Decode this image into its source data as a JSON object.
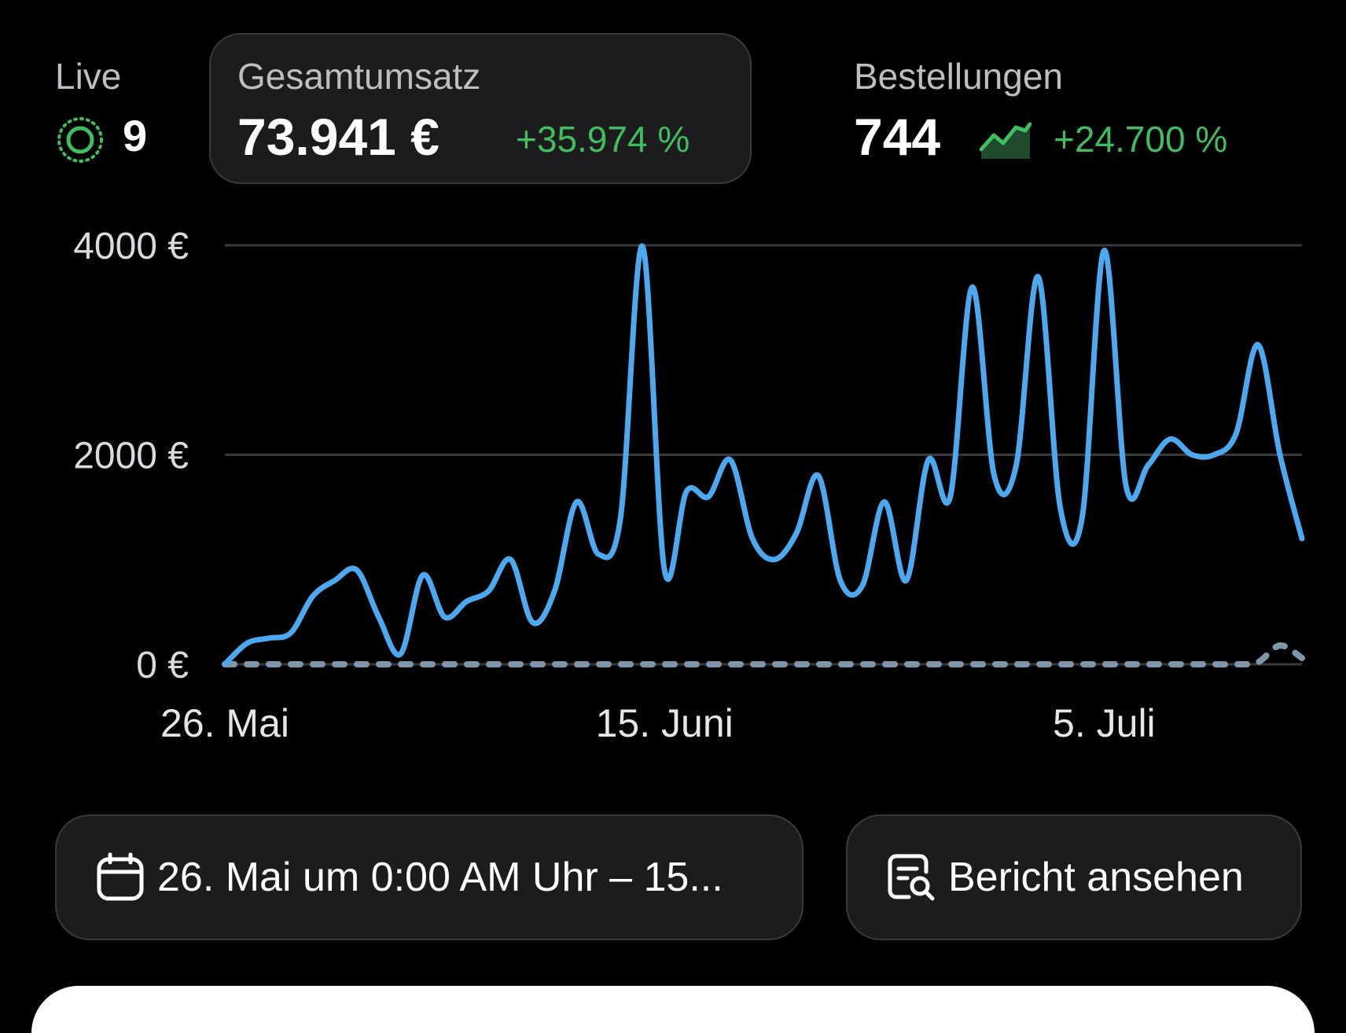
{
  "live": {
    "label": "Live",
    "count": "9",
    "icon": "live-activity-icon"
  },
  "revenue": {
    "label": "Gesamtumsatz",
    "value": "73.941 €",
    "delta": "+35.974 %"
  },
  "orders": {
    "label": "Bestellungen",
    "value": "744",
    "delta": "+24.700 %",
    "icon": "trend-up-icon"
  },
  "colors": {
    "accent_line": "#4da9ef",
    "positive": "#3fbd5f",
    "card_bg": "#1c1c1e"
  },
  "chart_data": {
    "type": "line",
    "x_tick_labels": [
      "26. Mai",
      "15. Juni",
      "5. Juli"
    ],
    "y_tick_labels": [
      "0 €",
      "2000 €",
      "4000 €"
    ],
    "ylim": [
      0,
      4000
    ],
    "grid": true,
    "x": [
      "2024-05-26",
      "2024-05-27",
      "2024-05-28",
      "2024-05-29",
      "2024-05-30",
      "2024-05-31",
      "2024-06-01",
      "2024-06-02",
      "2024-06-03",
      "2024-06-04",
      "2024-06-05",
      "2024-06-06",
      "2024-06-07",
      "2024-06-08",
      "2024-06-09",
      "2024-06-10",
      "2024-06-11",
      "2024-06-12",
      "2024-06-13",
      "2024-06-14",
      "2024-06-15",
      "2024-06-16",
      "2024-06-17",
      "2024-06-18",
      "2024-06-19",
      "2024-06-20",
      "2024-06-21",
      "2024-06-22",
      "2024-06-23",
      "2024-06-24",
      "2024-06-25",
      "2024-06-26",
      "2024-06-27",
      "2024-06-28",
      "2024-06-29",
      "2024-06-30",
      "2024-07-01",
      "2024-07-02",
      "2024-07-03",
      "2024-07-04",
      "2024-07-05",
      "2024-07-06",
      "2024-07-07",
      "2024-07-08",
      "2024-07-09",
      "2024-07-10",
      "2024-07-11",
      "2024-07-12",
      "2024-07-13",
      "2024-07-14"
    ],
    "series": [
      {
        "style": "solid",
        "values": [
          0,
          200,
          250,
          300,
          650,
          800,
          900,
          450,
          100,
          850,
          450,
          600,
          700,
          1000,
          400,
          700,
          1550,
          1050,
          1400,
          3990,
          900,
          1650,
          1600,
          1950,
          1200,
          1000,
          1250,
          1800,
          800,
          750,
          1550,
          800,
          1950,
          1600,
          3600,
          1800,
          1900,
          3700,
          1500,
          1400,
          3950,
          1700,
          1900,
          2150,
          2000,
          2000,
          2200,
          3050,
          2000,
          1200
        ]
      },
      {
        "style": "dashed",
        "values": [
          0,
          0,
          0,
          0,
          0,
          0,
          0,
          0,
          0,
          0,
          0,
          0,
          0,
          0,
          0,
          0,
          0,
          0,
          0,
          0,
          0,
          0,
          0,
          0,
          0,
          0,
          0,
          0,
          0,
          0,
          0,
          0,
          0,
          0,
          0,
          0,
          0,
          0,
          0,
          0,
          0,
          0,
          0,
          0,
          0,
          0,
          0,
          20,
          180,
          60
        ]
      }
    ]
  },
  "actions": {
    "date_range_label": "26. Mai um 0:00 AM Uhr – 15...",
    "date_icon": "calendar-icon",
    "report_label": "Bericht ansehen",
    "report_icon": "report-search-icon"
  }
}
